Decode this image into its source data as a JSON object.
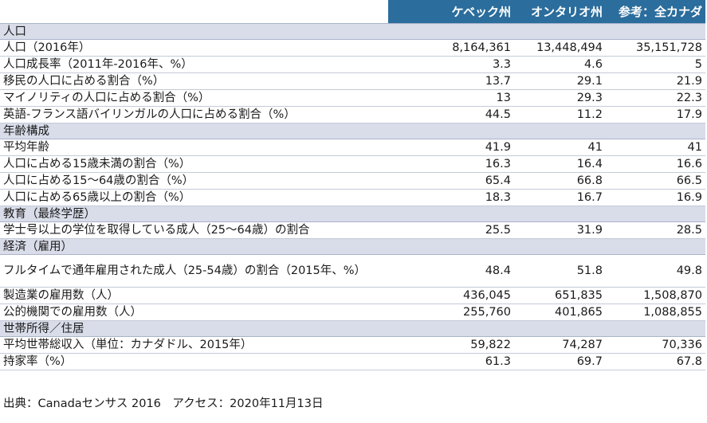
{
  "header": {
    "col1": "ケベック州",
    "col2": "オンタリオ州",
    "col3": "参考：全カナダ"
  },
  "sections": [
    {
      "title": "人口",
      "rows": [
        {
          "label": "人口（2016年）",
          "quebec": "8,164,361",
          "ontario": "13,448,494",
          "canada": "35,151,728"
        },
        {
          "label": "人口成長率（2011年-2016年、%）",
          "quebec": "3.3",
          "ontario": "4.6",
          "canada": "5"
        },
        {
          "label": "移民の人口に占める割合（%）",
          "quebec": "13.7",
          "ontario": "29.1",
          "canada": "21.9"
        },
        {
          "label": "マイノリティの人口に占める割合（%）",
          "quebec": "13",
          "ontario": "29.3",
          "canada": "22.3"
        },
        {
          "label": "英語-フランス語バイリンガルの人口に占める割合（%）",
          "quebec": "44.5",
          "ontario": "11.2",
          "canada": "17.9"
        }
      ]
    },
    {
      "title": "年齢構成",
      "rows": [
        {
          "label": "平均年齢",
          "quebec": "41.9",
          "ontario": "41",
          "canada": "41"
        },
        {
          "label": "人口に占める15歳未満の割合（%）",
          "quebec": "16.3",
          "ontario": "16.4",
          "canada": "16.6"
        },
        {
          "label": "人口に占める15～64歳の割合（%）",
          "quebec": "65.4",
          "ontario": "66.8",
          "canada": "66.5"
        },
        {
          "label": "人口に占める65歳以上の割合（%）",
          "quebec": "18.3",
          "ontario": "16.7",
          "canada": "16.9"
        }
      ]
    },
    {
      "title": "教育（最終学歴）",
      "rows": [
        {
          "label": "学士号以上の学位を取得している成人（25～64歳）の割合",
          "quebec": "25.5",
          "ontario": "31.9",
          "canada": "28.5"
        }
      ]
    },
    {
      "title": "経済（雇用）",
      "rows": [
        {
          "label": "フルタイムで通年雇用された成人（25-54歳）の割合（2015年、%）",
          "quebec": "48.4",
          "ontario": "51.8",
          "canada": "49.8",
          "tall": true
        },
        {
          "label": "製造業の雇用数（人）",
          "quebec": "436,045",
          "ontario": "651,835",
          "canada": "1,508,870"
        },
        {
          "label": "公的機関での雇用数（人）",
          "quebec": "255,760",
          "ontario": "401,865",
          "canada": "1,088,855"
        }
      ]
    },
    {
      "title": "世帯所得／住居",
      "rows": [
        {
          "label": "平均世帯総収入（単位：カナダドル、2015年）",
          "quebec": "59,822",
          "ontario": "74,287",
          "canada": "70,336"
        },
        {
          "label": "持家率（%）",
          "quebec": "61.3",
          "ontario": "69.7",
          "canada": "67.8"
        }
      ]
    }
  ],
  "source": "出典：Canadaセンサス 2016　アクセス：2020年11月13日"
}
